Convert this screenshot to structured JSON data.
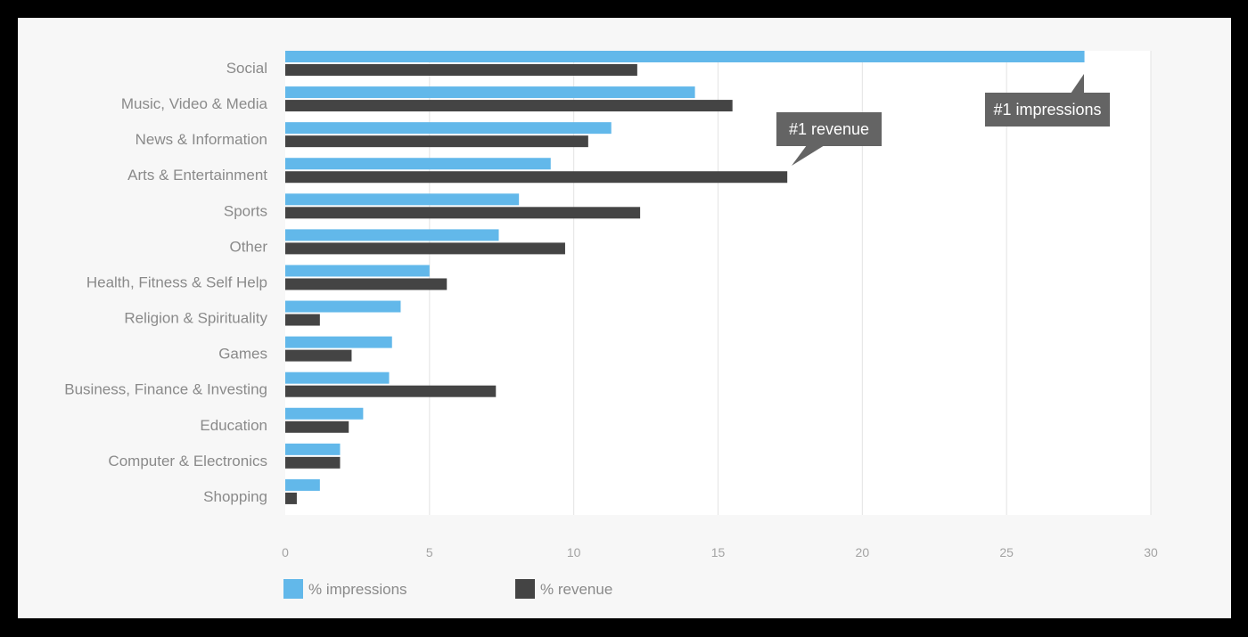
{
  "colors": {
    "impressions": "#62b8ea",
    "revenue": "#444444",
    "callout": "#646464",
    "grid": "#e3e3e3",
    "plot_bg": "#ffffff",
    "card_bg": "#f7f7f7"
  },
  "chart_data": {
    "type": "bar",
    "orientation": "horizontal",
    "categories": [
      "Social",
      "Music, Video & Media",
      "News & Information",
      "Arts & Entertainment",
      "Sports",
      "Other",
      "Health, Fitness & Self Help",
      "Religion & Spirituality",
      "Games",
      "Business, Finance & Investing",
      "Education",
      "Computer & Electronics",
      "Shopping"
    ],
    "series": [
      {
        "name": "% impressions",
        "values": [
          27.7,
          14.2,
          11.3,
          9.2,
          8.1,
          7.4,
          5.0,
          4.0,
          3.7,
          3.6,
          2.7,
          1.9,
          1.2
        ]
      },
      {
        "name": "% revenue",
        "values": [
          12.2,
          15.5,
          10.5,
          17.4,
          12.3,
          9.7,
          5.6,
          1.2,
          2.3,
          7.3,
          2.2,
          1.9,
          0.4
        ]
      }
    ],
    "xlim": [
      0,
      30
    ],
    "xticks": [
      "0",
      "5",
      "10",
      "15",
      "20",
      "25",
      "30"
    ],
    "grid": true,
    "legend_position": "bottom-left",
    "annotations": [
      {
        "text": "#1 impressions",
        "category": "Social",
        "series": "% impressions"
      },
      {
        "text": "#1 revenue",
        "category": "Arts & Entertainment",
        "series": "% revenue"
      }
    ]
  }
}
